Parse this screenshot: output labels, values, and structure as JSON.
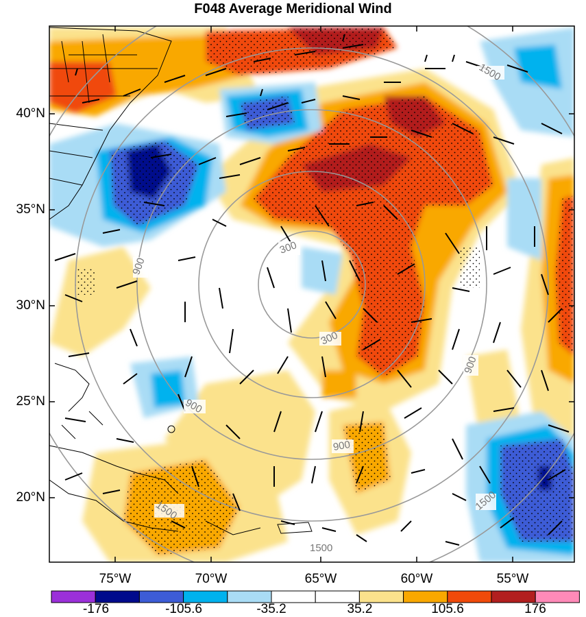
{
  "title": "F048 Average Meridional Wind",
  "lat_labels": [
    "40°N",
    "35°N",
    "30°N",
    "25°N",
    "20°N"
  ],
  "lon_labels": [
    "75°W",
    "70°W",
    "65°W",
    "60°W",
    "55°W"
  ],
  "contour_labels": [
    "300",
    "900",
    "1500"
  ],
  "colorbar": {
    "colors": [
      "#9b30d9",
      "#000a8c",
      "#3d5cd6",
      "#00b2ee",
      "#a9dcf5",
      "#ffffff",
      "#ffffff",
      "#fbe28c",
      "#f9a800",
      "#f04a0a",
      "#b21f1f",
      "#ff8ab8"
    ],
    "labels": [
      "-176",
      "-105.6",
      "-35.2",
      "35.2",
      "105.6",
      "176"
    ]
  }
}
